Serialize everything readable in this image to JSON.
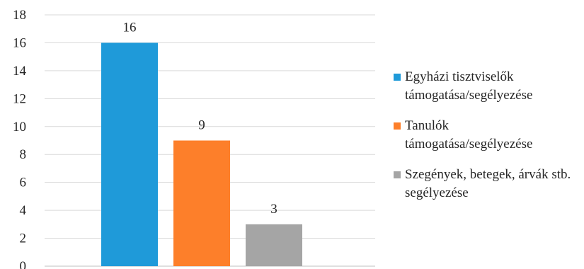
{
  "chart_data": {
    "type": "bar",
    "categories": [
      "Egyházi tisztviselők támogatása/segélyezése",
      "Tanulók támogatása/segélyezése",
      "Szegények, betegek, árvák stb. segélyezése"
    ],
    "values": [
      16,
      9,
      3
    ],
    "colors": [
      "#1f9ad9",
      "#fd7f2a",
      "#a5a5a5"
    ],
    "title": "",
    "xlabel": "",
    "ylabel": "",
    "ylim": [
      0,
      18
    ],
    "yticks": [
      "0",
      "2",
      "4",
      "6",
      "8",
      "10",
      "12",
      "14",
      "16",
      "18"
    ],
    "data_labels": [
      "16",
      "9",
      "3"
    ],
    "grid": "horizontal",
    "legend_position": "right",
    "legend": [
      "Egyházi tisztviselők támogatása/segélyezése",
      "Tanulók támogatása/segélyezése",
      "Szegények, betegek, árvák stb. segélyezése"
    ]
  }
}
